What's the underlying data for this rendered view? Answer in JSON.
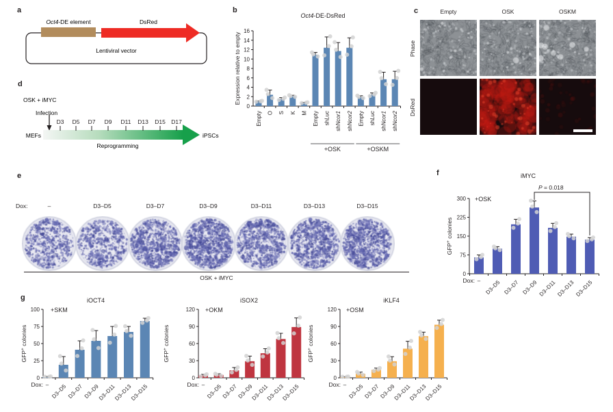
{
  "panel_letters": {
    "a": "a",
    "b": "b",
    "c": "c",
    "d": "d",
    "e": "e",
    "f": "f",
    "g": "g"
  },
  "panel_a": {
    "element_label": {
      "italic": "Oct4",
      "rest": "-DE element"
    },
    "dsred_label": "DsRed",
    "vector_label": "Lentiviral vector",
    "colors": {
      "element_box": "#b28c5c",
      "dsred_arrow": "#ee2b24",
      "outline": "#231f20"
    }
  },
  "panel_c": {
    "columns": [
      "Empty",
      "OSK",
      "OSKM"
    ],
    "row_labels": [
      "Phase",
      "DsRed"
    ]
  },
  "panel_d": {
    "condition": "OSK + iMYC",
    "infection_label": "Infection",
    "timepoints": [
      "D3",
      "D5",
      "D7",
      "D9",
      "D11",
      "D13",
      "D15",
      "D17"
    ],
    "start_label": "MEFs",
    "end_label": "iPSCs",
    "arrow_label": "Reprogramming",
    "arrow_color": "#17a04b"
  },
  "panel_e": {
    "dox_label": "Dox:",
    "dish_labels": [
      "–",
      "D3–D5",
      "D3–D7",
      "D3–D9",
      "D3–D11",
      "D3–D13",
      "D3–D15"
    ],
    "dish_densities": [
      0.3,
      0.38,
      0.58,
      0.78,
      0.55,
      0.65,
      0.7
    ],
    "group_label": "OSK + iMYC"
  },
  "dot_color": "#d2d2d2",
  "chart_data": [
    {
      "id": "b",
      "type": "bar",
      "title": {
        "italic": "Oct4",
        "rest": "-DE-DsRed"
      },
      "ylabel": "Expression relative to empty",
      "ylim": [
        0,
        16
      ],
      "yticks": [
        0,
        2,
        4,
        6,
        8,
        10,
        12,
        14,
        16
      ],
      "categories": [
        "Empty",
        "O",
        "S",
        "K",
        "M",
        "Empty",
        "shLuc",
        "shNcor1",
        "shNcor2",
        "Empty",
        "shLuc",
        "shNcor1",
        "shNcor2"
      ],
      "values": [
        1.0,
        2.4,
        1.5,
        2.1,
        0.7,
        10.9,
        12.4,
        11.7,
        12.4,
        1.9,
        2.4,
        5.7,
        5.7
      ],
      "errors": [
        0.1,
        1.0,
        0.3,
        0.2,
        0.1,
        0.5,
        2.3,
        1.8,
        2.1,
        0.3,
        0.4,
        1.5,
        1.7
      ],
      "bar_color": "#5b86b4",
      "groups": [
        {
          "label": "+OSK",
          "start": 5,
          "end": 8
        },
        {
          "label": "+OSKM",
          "start": 9,
          "end": 12
        }
      ],
      "tick_rotation": 90
    },
    {
      "id": "f",
      "type": "bar",
      "title": "iMYC",
      "annotation": "+OSK",
      "pvalue": {
        "italic": "P",
        "rest": " = 0.018"
      },
      "pvalue_bars": [
        3,
        6
      ],
      "ylabel": {
        "base": "GFP",
        "sup": "+",
        "rest": " colonies"
      },
      "ylim": [
        0,
        300
      ],
      "yticks": [
        0,
        75,
        150,
        225,
        300
      ],
      "dox_label": "Dox:",
      "categories": [
        "–",
        "D3–D5",
        "D3–D7",
        "D3–D9",
        "D3–D11",
        "D3–D13",
        "D3–D15"
      ],
      "values": [
        65,
        100,
        197,
        264,
        183,
        148,
        136
      ],
      "errors": [
        10,
        8,
        20,
        26,
        18,
        10,
        8
      ],
      "bar_color": "#4f5cb4",
      "tick_rotation": 45
    },
    {
      "id": "g1",
      "type": "bar",
      "title": "iOCT4",
      "annotation": "+SKM",
      "ylabel": {
        "base": "GFP",
        "sup": "+",
        "rest": " colonies"
      },
      "ylim": [
        0,
        100
      ],
      "yticks": [
        0,
        25,
        50,
        75,
        100
      ],
      "dox_label": "Dox:",
      "categories": [
        "–",
        "D3–D5",
        "D3–D7",
        "D3–D9",
        "D3–D11",
        "D3–D13",
        "D3–D15"
      ],
      "values": [
        1,
        19,
        41,
        54,
        61,
        67,
        83
      ],
      "errors": [
        1,
        12,
        13,
        15,
        14,
        8,
        4
      ],
      "bar_color": "#5b86b4",
      "tick_rotation": 45
    },
    {
      "id": "g2",
      "type": "bar",
      "title": "iSOX2",
      "annotation": "+OKM",
      "ylabel": {
        "base": "GFP",
        "sup": "+",
        "rest": " colonies"
      },
      "ylim": [
        0,
        120
      ],
      "yticks": [
        0,
        30,
        60,
        90,
        120
      ],
      "dox_label": "Dox:",
      "categories": [
        "–",
        "D3–D5",
        "D3–D7",
        "D3–D9",
        "D3–D11",
        "D3–D13",
        "D3–D15"
      ],
      "values": [
        4,
        5,
        13,
        29,
        43,
        68,
        89
      ],
      "errors": [
        2,
        2,
        5,
        9,
        8,
        10,
        16
      ],
      "bar_color": "#bf3540",
      "tick_rotation": 45
    },
    {
      "id": "g3",
      "type": "bar",
      "title": "iKLF4",
      "annotation": "+OSM",
      "ylabel": {
        "base": "GFP",
        "sup": "+",
        "rest": " colonies"
      },
      "ylim": [
        0,
        120
      ],
      "yticks": [
        0,
        30,
        60,
        90,
        120
      ],
      "dox_label": "Dox:",
      "categories": [
        "–",
        "D3–D5",
        "D3–D7",
        "D3–D9",
        "D3–D11",
        "D3–D13",
        "D3–D15"
      ],
      "values": [
        1,
        7,
        14,
        29,
        51,
        73,
        93
      ],
      "errors": [
        1,
        3,
        3,
        8,
        13,
        7,
        8
      ],
      "bar_color": "#f5b04e",
      "tick_rotation": 45
    }
  ]
}
